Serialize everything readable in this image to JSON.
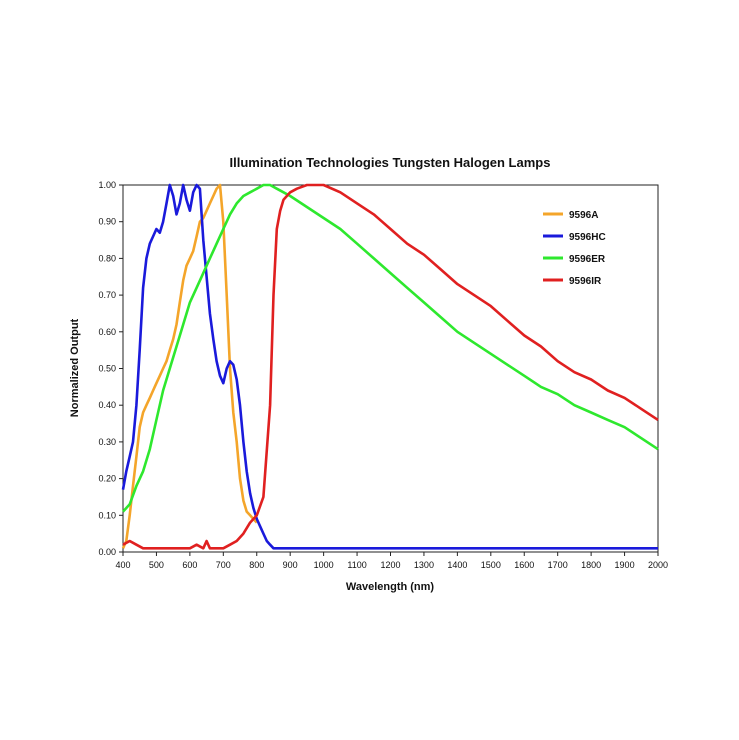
{
  "chart_data": {
    "type": "line",
    "title": "Illumination Technologies Tungsten Halogen Lamps",
    "xlabel": "Wavelength (nm)",
    "ylabel": "Normalized Output",
    "xlim": [
      400,
      2000
    ],
    "ylim": [
      0,
      1.0
    ],
    "x_ticks": [
      "400",
      "500",
      "600",
      "700",
      "800",
      "900",
      "1000",
      "1100",
      "1200",
      "1300",
      "1400",
      "1500",
      "1600",
      "1700",
      "1800",
      "1900",
      "2000"
    ],
    "y_ticks": [
      "0.00",
      "0.10",
      "0.20",
      "0.30",
      "0.40",
      "0.50",
      "0.60",
      "0.70",
      "0.80",
      "0.90",
      "1.00"
    ],
    "grid": false,
    "legend_position": "top-right",
    "series": [
      {
        "name": "9596A",
        "color": "#f4a52a",
        "x": [
          400,
          410,
          420,
          430,
          440,
          450,
          460,
          470,
          480,
          490,
          500,
          510,
          520,
          530,
          540,
          550,
          560,
          570,
          580,
          590,
          600,
          610,
          620,
          630,
          640,
          650,
          660,
          670,
          680,
          690,
          700,
          710,
          720,
          730,
          740,
          750,
          760,
          770,
          780,
          790,
          800
        ],
        "y": [
          0.01,
          0.03,
          0.1,
          0.18,
          0.26,
          0.34,
          0.38,
          0.4,
          0.42,
          0.44,
          0.46,
          0.48,
          0.5,
          0.52,
          0.55,
          0.58,
          0.62,
          0.68,
          0.74,
          0.78,
          0.8,
          0.82,
          0.86,
          0.9,
          0.91,
          0.93,
          0.95,
          0.97,
          0.99,
          1.0,
          0.9,
          0.7,
          0.5,
          0.38,
          0.3,
          0.2,
          0.14,
          0.11,
          0.1,
          0.09,
          0.08
        ]
      },
      {
        "name": "9596HC",
        "color": "#1a1adb",
        "x": [
          400,
          410,
          420,
          430,
          440,
          450,
          460,
          470,
          480,
          490,
          500,
          510,
          520,
          530,
          540,
          550,
          560,
          570,
          580,
          590,
          600,
          610,
          620,
          630,
          640,
          650,
          660,
          670,
          680,
          690,
          700,
          710,
          720,
          730,
          740,
          750,
          760,
          770,
          780,
          790,
          800,
          810,
          820,
          830,
          840,
          850,
          860,
          870,
          880,
          900,
          1000,
          1200,
          1400,
          1600,
          1800,
          2000
        ],
        "y": [
          0.17,
          0.22,
          0.26,
          0.3,
          0.4,
          0.55,
          0.72,
          0.8,
          0.84,
          0.86,
          0.88,
          0.87,
          0.9,
          0.95,
          1.0,
          0.97,
          0.92,
          0.95,
          1.0,
          0.96,
          0.93,
          0.98,
          1.0,
          0.99,
          0.85,
          0.75,
          0.65,
          0.58,
          0.52,
          0.48,
          0.46,
          0.5,
          0.52,
          0.51,
          0.47,
          0.4,
          0.3,
          0.22,
          0.16,
          0.12,
          0.09,
          0.07,
          0.05,
          0.03,
          0.02,
          0.01,
          0.01,
          0.01,
          0.01,
          0.01,
          0.01,
          0.01,
          0.01,
          0.01,
          0.01,
          0.01
        ]
      },
      {
        "name": "9596ER",
        "color": "#2ee82e",
        "x": [
          400,
          420,
          440,
          460,
          480,
          500,
          520,
          540,
          560,
          580,
          600,
          620,
          640,
          660,
          680,
          700,
          720,
          740,
          760,
          780,
          800,
          820,
          840,
          860,
          880,
          900,
          950,
          1000,
          1050,
          1100,
          1150,
          1200,
          1250,
          1300,
          1350,
          1400,
          1450,
          1500,
          1550,
          1600,
          1650,
          1700,
          1750,
          1800,
          1850,
          1900,
          1950,
          2000
        ],
        "y": [
          0.11,
          0.13,
          0.18,
          0.22,
          0.28,
          0.36,
          0.44,
          0.5,
          0.56,
          0.62,
          0.68,
          0.72,
          0.76,
          0.8,
          0.84,
          0.88,
          0.92,
          0.95,
          0.97,
          0.98,
          0.99,
          1.0,
          1.0,
          0.99,
          0.98,
          0.97,
          0.94,
          0.91,
          0.88,
          0.84,
          0.8,
          0.76,
          0.72,
          0.68,
          0.64,
          0.6,
          0.57,
          0.54,
          0.51,
          0.48,
          0.45,
          0.43,
          0.4,
          0.38,
          0.36,
          0.34,
          0.31,
          0.28
        ]
      },
      {
        "name": "9596IR",
        "color": "#e02020",
        "x": [
          400,
          420,
          440,
          460,
          480,
          500,
          520,
          540,
          560,
          580,
          600,
          620,
          640,
          650,
          660,
          680,
          700,
          720,
          740,
          760,
          780,
          800,
          820,
          840,
          850,
          860,
          870,
          880,
          900,
          920,
          950,
          1000,
          1050,
          1100,
          1150,
          1200,
          1250,
          1300,
          1350,
          1400,
          1450,
          1500,
          1550,
          1600,
          1650,
          1700,
          1750,
          1800,
          1850,
          1900,
          1950,
          2000
        ],
        "y": [
          0.02,
          0.03,
          0.02,
          0.01,
          0.01,
          0.01,
          0.01,
          0.01,
          0.01,
          0.01,
          0.01,
          0.02,
          0.01,
          0.03,
          0.01,
          0.01,
          0.01,
          0.02,
          0.03,
          0.05,
          0.08,
          0.1,
          0.15,
          0.4,
          0.7,
          0.88,
          0.93,
          0.96,
          0.98,
          0.99,
          1.0,
          1.0,
          0.98,
          0.95,
          0.92,
          0.88,
          0.84,
          0.81,
          0.77,
          0.73,
          0.7,
          0.67,
          0.63,
          0.59,
          0.56,
          0.52,
          0.49,
          0.47,
          0.44,
          0.42,
          0.39,
          0.36
        ]
      }
    ]
  }
}
